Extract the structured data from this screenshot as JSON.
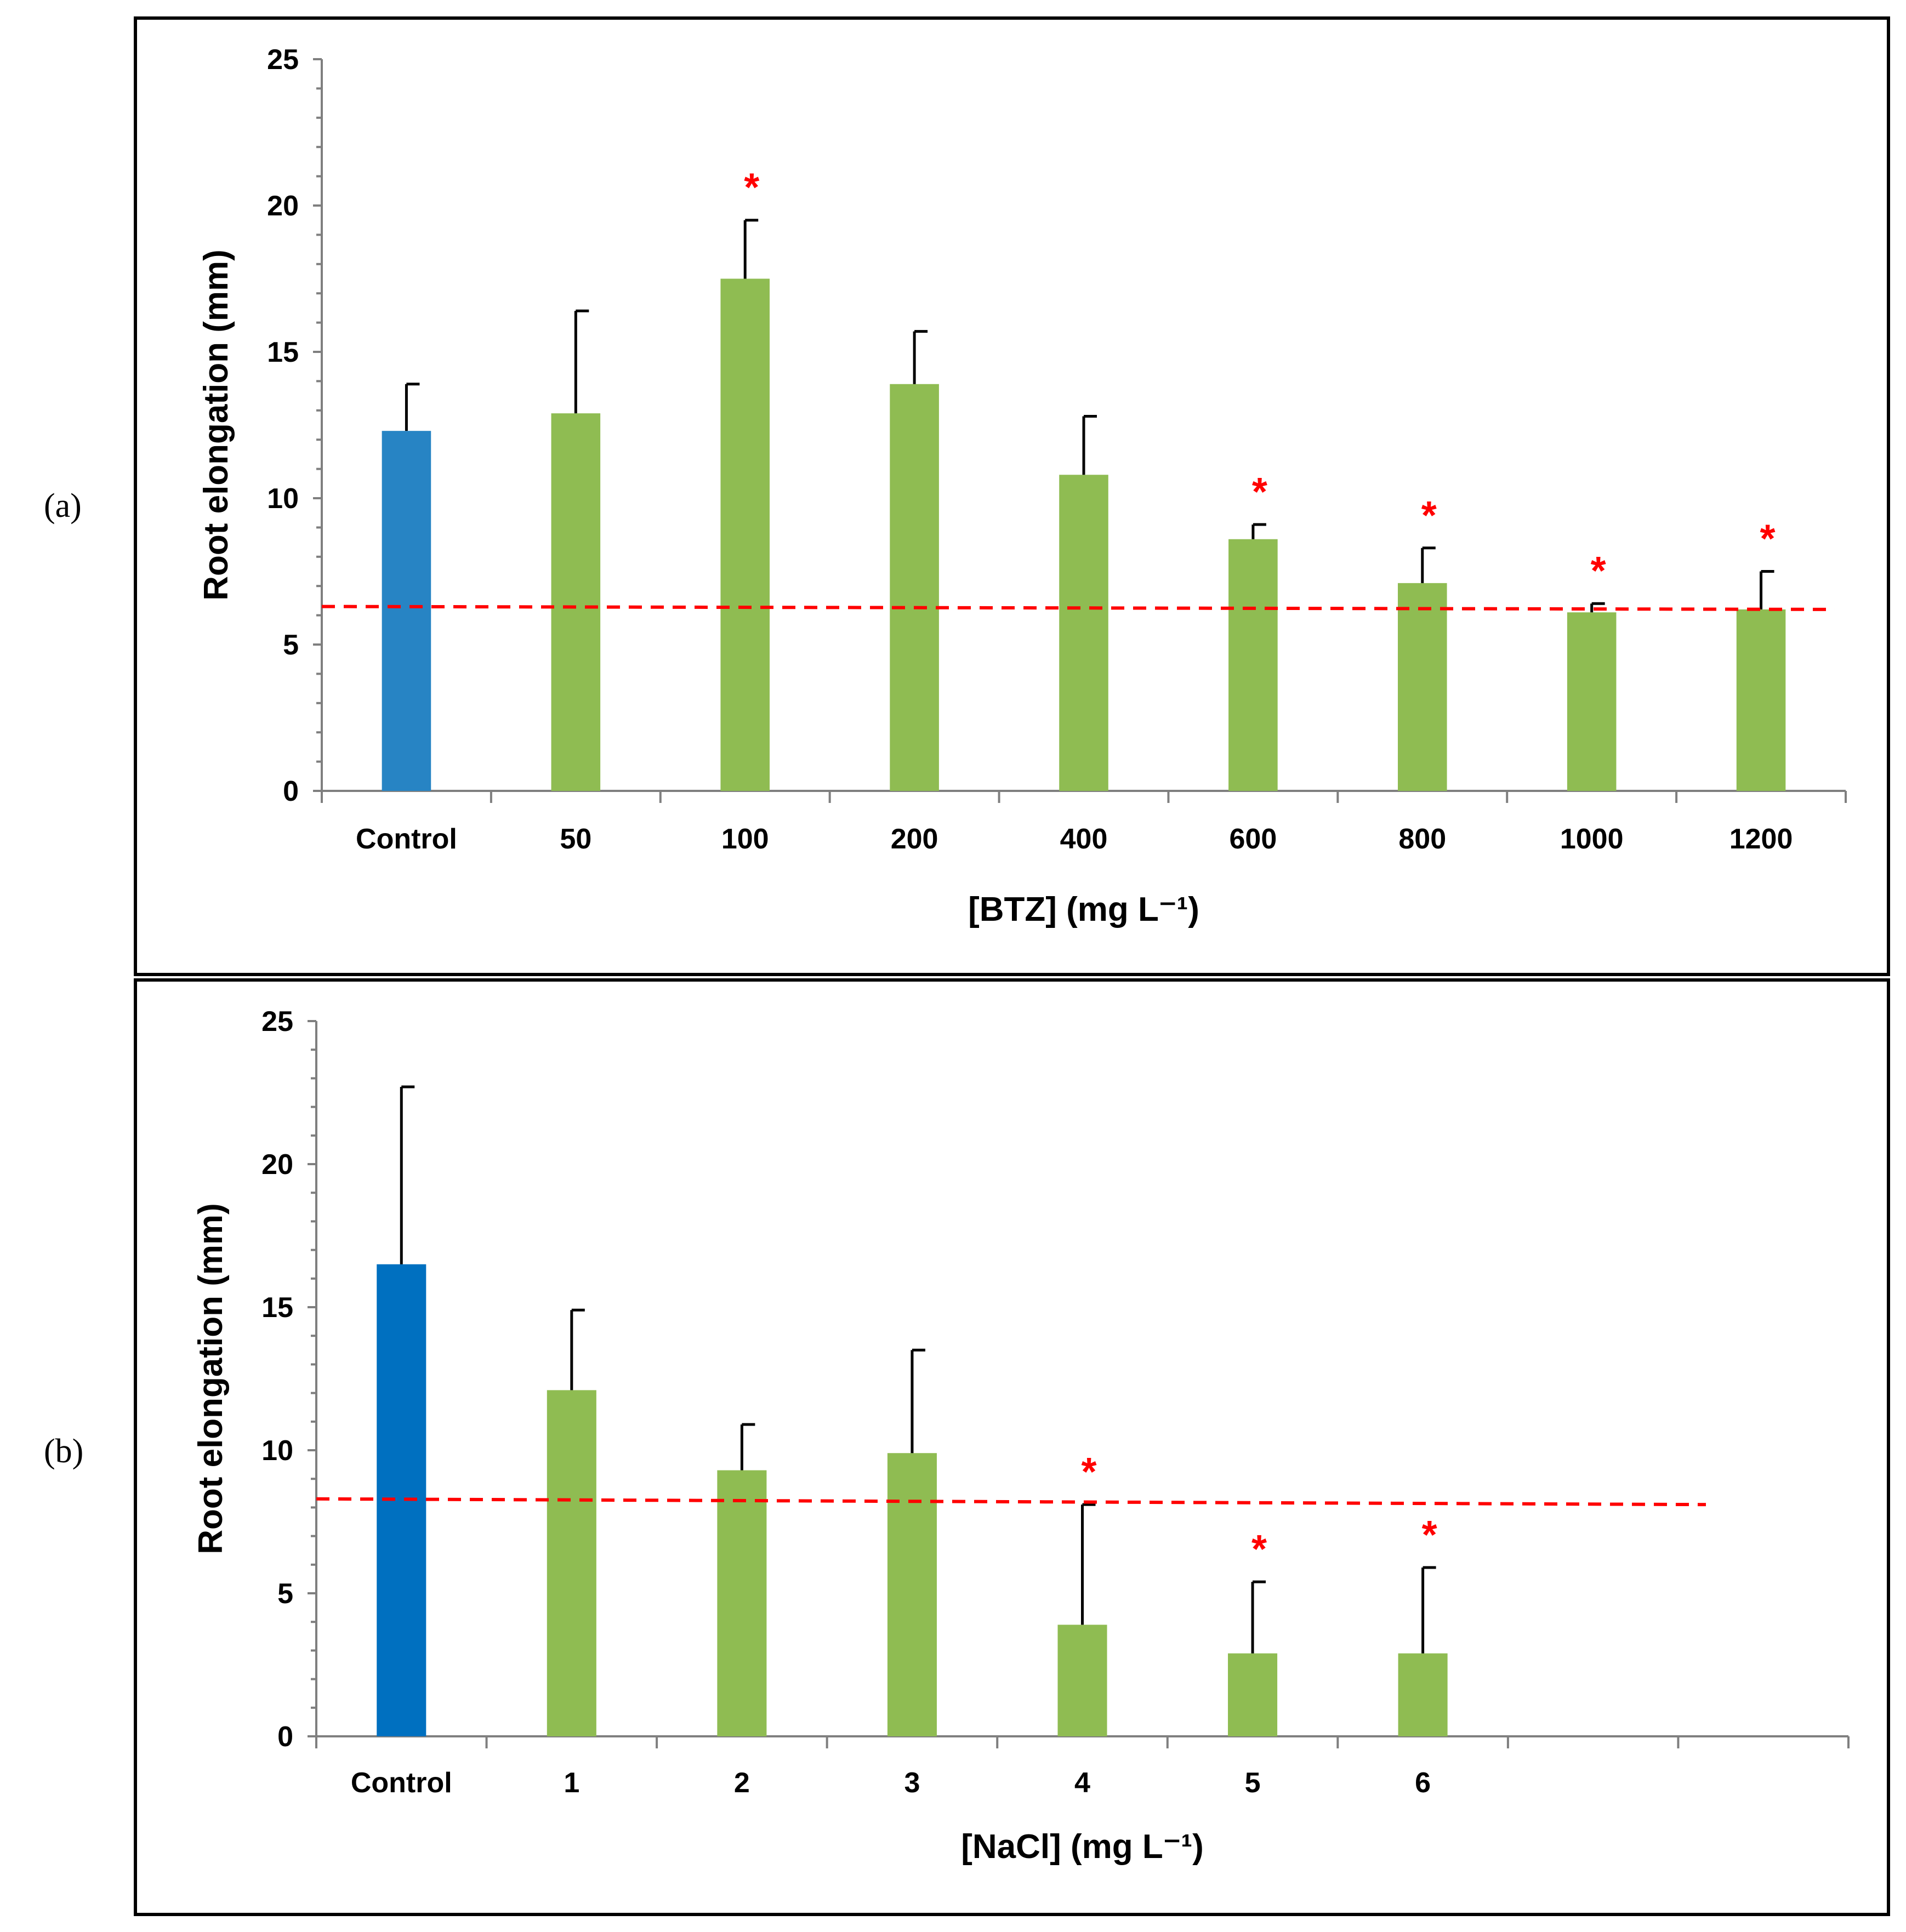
{
  "chart_data": [
    {
      "type": "bar",
      "panel_label": "(a)",
      "categories": [
        "Control",
        "50",
        "100",
        "200",
        "400",
        "600",
        "800",
        "1000",
        "1200"
      ],
      "values": [
        12.3,
        12.9,
        17.5,
        13.9,
        10.8,
        8.6,
        7.1,
        6.1,
        6.2
      ],
      "errors": [
        1.6,
        3.5,
        2.0,
        1.8,
        2.0,
        0.5,
        1.2,
        0.3,
        1.3
      ],
      "significant": [
        false,
        false,
        true,
        false,
        false,
        true,
        true,
        true,
        true
      ],
      "bar_colors": [
        "#2784C4",
        "#8FBC52",
        "#8FBC52",
        "#8FBC52",
        "#8FBC52",
        "#8FBC52",
        "#8FBC52",
        "#8FBC52",
        "#8FBC52"
      ],
      "significance_marker": "*",
      "reference_line": {
        "y_start": 6.3,
        "y_end": 6.2,
        "color": "#FF0000",
        "style": "dashed"
      },
      "xlabel": "[BTZ] (mg L⁻¹)",
      "ylabel": "Root elongation (mm)",
      "ylim": [
        0,
        25
      ],
      "yticks": [
        0,
        5,
        10,
        15,
        20,
        25
      ],
      "slots": 9,
      "grid": false
    },
    {
      "type": "bar",
      "panel_label": "(b)",
      "categories": [
        "Control",
        "1",
        "2",
        "3",
        "4",
        "5",
        "6"
      ],
      "values": [
        16.5,
        12.1,
        9.3,
        9.9,
        3.9,
        2.9,
        2.9
      ],
      "errors": [
        6.2,
        2.8,
        1.6,
        3.6,
        4.2,
        2.5,
        3.0
      ],
      "significant": [
        false,
        false,
        false,
        false,
        true,
        true,
        true
      ],
      "bar_colors": [
        "#0070C0",
        "#8FBC52",
        "#8FBC52",
        "#8FBC52",
        "#8FBC52",
        "#8FBC52",
        "#8FBC52"
      ],
      "significance_marker": "*",
      "reference_line": {
        "y_start": 8.3,
        "y_end": 8.1,
        "color": "#FF0000",
        "style": "dashed"
      },
      "xlabel": "[NaCl] (mg L⁻¹)",
      "ylabel": "Root elongation (mm)",
      "ylim": [
        0,
        25
      ],
      "yticks": [
        0,
        5,
        10,
        15,
        20,
        25
      ],
      "slots": 9,
      "grid": false
    }
  ]
}
